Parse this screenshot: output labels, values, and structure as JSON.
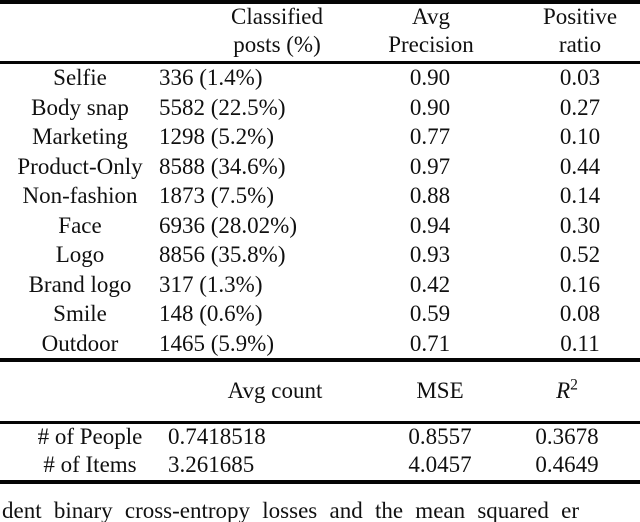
{
  "table1": {
    "headers": {
      "classified": [
        "Classified",
        "posts (%)"
      ],
      "avg_precision": [
        "Avg",
        "Precision"
      ],
      "positive_ratio": [
        "Positive",
        "ratio"
      ]
    },
    "rows": [
      {
        "label": "Selfie",
        "posts": "336 (1.4%)",
        "avg_precision": "0.90",
        "positive_ratio": "0.03"
      },
      {
        "label": "Body snap",
        "posts": "5582 (22.5%)",
        "avg_precision": "0.90",
        "positive_ratio": "0.27"
      },
      {
        "label": "Marketing",
        "posts": "1298 (5.2%)",
        "avg_precision": "0.77",
        "positive_ratio": "0.10"
      },
      {
        "label": "Product-Only",
        "posts": "8588 (34.6%)",
        "avg_precision": "0.97",
        "positive_ratio": "0.44"
      },
      {
        "label": "Non-fashion",
        "posts": "1873 (7.5%)",
        "avg_precision": "0.88",
        "positive_ratio": "0.14"
      },
      {
        "label": "Face",
        "posts": "6936 (28.02%)",
        "avg_precision": "0.94",
        "positive_ratio": "0.30"
      },
      {
        "label": "Logo",
        "posts": "8856 (35.8%)",
        "avg_precision": "0.93",
        "positive_ratio": "0.52"
      },
      {
        "label": "Brand logo",
        "posts": "317 (1.3%)",
        "avg_precision": "0.42",
        "positive_ratio": "0.16"
      },
      {
        "label": "Smile",
        "posts": "148 (0.6%)",
        "avg_precision": "0.59",
        "positive_ratio": "0.08"
      },
      {
        "label": "Outdoor",
        "posts": "1465 (5.9%)",
        "avg_precision": "0.71",
        "positive_ratio": "0.11"
      }
    ]
  },
  "table2": {
    "headers": {
      "avg_count": "Avg count",
      "mse": "MSE",
      "r2_base": "R",
      "r2_sup": "2"
    },
    "rows": [
      {
        "label": "# of People",
        "avg_count": "0.7418518",
        "mse": "0.8557",
        "r2": "0.3678"
      },
      {
        "label": "# of Items",
        "avg_count": "3.261685",
        "mse": "4.0457",
        "r2": "0.4649"
      }
    ]
  },
  "caption_fragment": "dent binary cross-entropy losses and the mean squared er",
  "colors": {
    "text": "#101010",
    "rule": "#050505",
    "background": "#ffffff"
  }
}
